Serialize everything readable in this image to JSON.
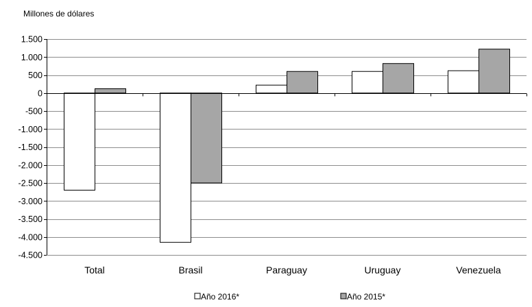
{
  "chart_data": {
    "type": "bar",
    "unit_label": "Millones de dólares",
    "categories": [
      "Total",
      "Brasil",
      "Paraguay",
      "Uruguay",
      "Venezuela"
    ],
    "series": [
      {
        "name": "Año 2016*",
        "values": [
          -2700,
          -4150,
          220,
          600,
          620
        ],
        "color": "#ffffff"
      },
      {
        "name": "Año 2015*",
        "values": [
          120,
          -2500,
          600,
          820,
          1220
        ],
        "color": "#a6a6a6"
      }
    ],
    "ylim": [
      -4500,
      1500
    ],
    "y_ticks": [
      1500,
      1000,
      500,
      0,
      -500,
      -1000,
      -1500,
      -2000,
      -2500,
      -3000,
      -3500,
      -4000,
      -4500
    ],
    "y_tick_labels": [
      "1.500",
      "1.000",
      "500",
      "0",
      "-500",
      "-1.000",
      "-1.500",
      "-2.000",
      "-2.500",
      "-3.000",
      "-3.500",
      "-4.000",
      "-4.500"
    ],
    "grid": true,
    "legend_position": "bottom"
  }
}
